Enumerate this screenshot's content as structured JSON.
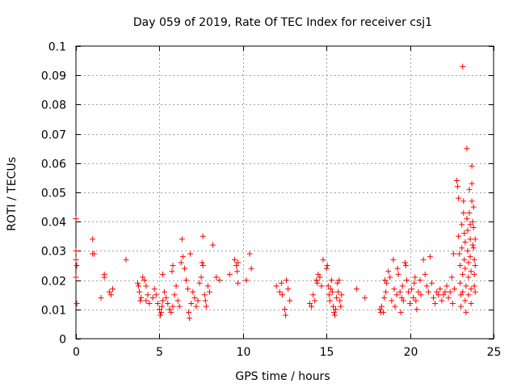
{
  "chart_data": {
    "type": "scatter",
    "title": "Day 059 of 2019, Rate Of TEC Index for receiver csj1",
    "xlabel": "GPS time / hours",
    "ylabel": "ROTI / TECUs",
    "xlim": [
      0,
      25
    ],
    "ylim": [
      0,
      0.1
    ],
    "x_ticks": [
      0,
      5,
      10,
      15,
      20,
      25
    ],
    "y_ticks": [
      0,
      0.01,
      0.02,
      0.03,
      0.04,
      0.05,
      0.06,
      0.07,
      0.08,
      0.09,
      0.1
    ],
    "x_tick_labels": [
      "0",
      "5",
      "10",
      "15",
      "20",
      "25"
    ],
    "y_tick_labels": [
      "0",
      "0.01",
      "0.02",
      "0.03",
      "0.04",
      "0.05",
      "0.06",
      "0.07",
      "0.08",
      "0.09",
      "0.1"
    ],
    "grid": true,
    "marker": "+",
    "marker_color": "#ff0000",
    "grid_color": "#a0a0a0",
    "series": [
      {
        "name": "ROTI",
        "points": [
          [
            0.0,
            0.041
          ],
          [
            0.0,
            0.03
          ],
          [
            0.0,
            0.027
          ],
          [
            0.05,
            0.025
          ],
          [
            0.0,
            0.021
          ],
          [
            0.05,
            0.012
          ],
          [
            1.0,
            0.034
          ],
          [
            1.0,
            0.029
          ],
          [
            1.1,
            0.029
          ],
          [
            1.5,
            0.014
          ],
          [
            1.7,
            0.022
          ],
          [
            1.7,
            0.021
          ],
          [
            2.0,
            0.016
          ],
          [
            2.1,
            0.015
          ],
          [
            2.2,
            0.017
          ],
          [
            3.0,
            0.027
          ],
          [
            3.7,
            0.019
          ],
          [
            3.8,
            0.016
          ],
          [
            3.9,
            0.014
          ],
          [
            3.85,
            0.013
          ],
          [
            3.75,
            0.018
          ],
          [
            4.0,
            0.021
          ],
          [
            4.1,
            0.02
          ],
          [
            4.2,
            0.018
          ],
          [
            4.3,
            0.015
          ],
          [
            4.4,
            0.012
          ],
          [
            4.2,
            0.013
          ],
          [
            4.6,
            0.014
          ],
          [
            4.7,
            0.017
          ],
          [
            4.8,
            0.015
          ],
          [
            4.9,
            0.012
          ],
          [
            5.0,
            0.01
          ],
          [
            5.05,
            0.008
          ],
          [
            5.1,
            0.009
          ],
          [
            5.15,
            0.011
          ],
          [
            5.2,
            0.013
          ],
          [
            5.3,
            0.016
          ],
          [
            5.2,
            0.022
          ],
          [
            5.4,
            0.014
          ],
          [
            5.5,
            0.012
          ],
          [
            5.6,
            0.01
          ],
          [
            5.7,
            0.009
          ],
          [
            5.8,
            0.011
          ],
          [
            5.75,
            0.023
          ],
          [
            5.8,
            0.025
          ],
          [
            5.9,
            0.015
          ],
          [
            6.0,
            0.018
          ],
          [
            6.1,
            0.013
          ],
          [
            6.2,
            0.011
          ],
          [
            6.3,
            0.026
          ],
          [
            6.4,
            0.028
          ],
          [
            6.35,
            0.034
          ],
          [
            6.5,
            0.024
          ],
          [
            6.6,
            0.02
          ],
          [
            6.7,
            0.017
          ],
          [
            6.75,
            0.009
          ],
          [
            6.8,
            0.007
          ],
          [
            6.9,
            0.012
          ],
          [
            6.85,
            0.029
          ],
          [
            7.0,
            0.016
          ],
          [
            7.1,
            0.014
          ],
          [
            7.2,
            0.011
          ],
          [
            7.3,
            0.013
          ],
          [
            7.4,
            0.019
          ],
          [
            7.5,
            0.021
          ],
          [
            7.55,
            0.026
          ],
          [
            7.6,
            0.025
          ],
          [
            7.7,
            0.015
          ],
          [
            7.75,
            0.013
          ],
          [
            7.8,
            0.011
          ],
          [
            7.6,
            0.035
          ],
          [
            7.9,
            0.018
          ],
          [
            8.0,
            0.016
          ],
          [
            8.2,
            0.032
          ],
          [
            8.4,
            0.021
          ],
          [
            8.6,
            0.02
          ],
          [
            9.2,
            0.022
          ],
          [
            9.5,
            0.027
          ],
          [
            9.6,
            0.025
          ],
          [
            9.65,
            0.023
          ],
          [
            9.7,
            0.019
          ],
          [
            9.7,
            0.026
          ],
          [
            10.2,
            0.02
          ],
          [
            10.4,
            0.029
          ],
          [
            10.5,
            0.024
          ],
          [
            12.0,
            0.018
          ],
          [
            12.2,
            0.016
          ],
          [
            12.3,
            0.019
          ],
          [
            12.35,
            0.015
          ],
          [
            12.5,
            0.01
          ],
          [
            12.55,
            0.008
          ],
          [
            12.6,
            0.02
          ],
          [
            12.7,
            0.017
          ],
          [
            12.8,
            0.013
          ],
          [
            14.0,
            0.012
          ],
          [
            14.1,
            0.011
          ],
          [
            14.2,
            0.015
          ],
          [
            14.3,
            0.013
          ],
          [
            14.4,
            0.02
          ],
          [
            14.45,
            0.019
          ],
          [
            14.5,
            0.022
          ],
          [
            14.6,
            0.021
          ],
          [
            14.7,
            0.018
          ],
          [
            14.8,
            0.027
          ],
          [
            15.0,
            0.024
          ],
          [
            15.05,
            0.025
          ],
          [
            15.1,
            0.018
          ],
          [
            15.15,
            0.015
          ],
          [
            15.2,
            0.013
          ],
          [
            15.25,
            0.017
          ],
          [
            15.3,
            0.02
          ],
          [
            15.35,
            0.016
          ],
          [
            15.4,
            0.011
          ],
          [
            15.45,
            0.009
          ],
          [
            15.5,
            0.008
          ],
          [
            15.55,
            0.01
          ],
          [
            15.6,
            0.014
          ],
          [
            15.65,
            0.019
          ],
          [
            15.7,
            0.016
          ],
          [
            15.75,
            0.02
          ],
          [
            15.8,
            0.013
          ],
          [
            15.85,
            0.011
          ],
          [
            15.9,
            0.015
          ],
          [
            16.8,
            0.017
          ],
          [
            17.3,
            0.014
          ],
          [
            18.2,
            0.01
          ],
          [
            18.25,
            0.009
          ],
          [
            18.3,
            0.011
          ],
          [
            18.4,
            0.009
          ],
          [
            18.45,
            0.014
          ],
          [
            18.5,
            0.02
          ],
          [
            18.55,
            0.016
          ],
          [
            18.6,
            0.019
          ],
          [
            18.7,
            0.023
          ],
          [
            18.8,
            0.021
          ],
          [
            18.9,
            0.013
          ],
          [
            19.0,
            0.027
          ],
          [
            19.05,
            0.017
          ],
          [
            19.1,
            0.011
          ],
          [
            19.2,
            0.015
          ],
          [
            19.25,
            0.024
          ],
          [
            19.3,
            0.022
          ],
          [
            19.4,
            0.016
          ],
          [
            19.45,
            0.009
          ],
          [
            19.5,
            0.014
          ],
          [
            19.55,
            0.018
          ],
          [
            19.6,
            0.013
          ],
          [
            19.7,
            0.026
          ],
          [
            19.75,
            0.025
          ],
          [
            19.8,
            0.02
          ],
          [
            19.9,
            0.016
          ],
          [
            20.0,
            0.012
          ],
          [
            20.1,
            0.017
          ],
          [
            20.2,
            0.014
          ],
          [
            20.25,
            0.019
          ],
          [
            20.3,
            0.021
          ],
          [
            20.35,
            0.013
          ],
          [
            20.4,
            0.01
          ],
          [
            20.5,
            0.016
          ],
          [
            20.6,
            0.02
          ],
          [
            20.65,
            0.015
          ],
          [
            20.8,
            0.027
          ],
          [
            20.9,
            0.022
          ],
          [
            21.0,
            0.018
          ],
          [
            21.1,
            0.016
          ],
          [
            21.2,
            0.028
          ],
          [
            21.3,
            0.019
          ],
          [
            21.4,
            0.014
          ],
          [
            21.5,
            0.012
          ],
          [
            21.6,
            0.016
          ],
          [
            21.7,
            0.015
          ],
          [
            21.8,
            0.017
          ],
          [
            21.9,
            0.013
          ],
          [
            22.0,
            0.015
          ],
          [
            22.1,
            0.016
          ],
          [
            22.2,
            0.018
          ],
          [
            22.3,
            0.014
          ],
          [
            22.4,
            0.016
          ],
          [
            22.5,
            0.021
          ],
          [
            22.55,
            0.012
          ],
          [
            22.6,
            0.029
          ],
          [
            22.65,
            0.017
          ],
          [
            22.8,
            0.054
          ],
          [
            22.85,
            0.052
          ],
          [
            22.9,
            0.048
          ],
          [
            22.9,
            0.035
          ],
          [
            22.95,
            0.029
          ],
          [
            23.0,
            0.025
          ],
          [
            23.0,
            0.019
          ],
          [
            23.05,
            0.015
          ],
          [
            23.05,
            0.011
          ],
          [
            23.1,
            0.039
          ],
          [
            23.1,
            0.031
          ],
          [
            23.15,
            0.022
          ],
          [
            23.15,
            0.016
          ],
          [
            23.2,
            0.047
          ],
          [
            23.2,
            0.043
          ],
          [
            23.25,
            0.036
          ],
          [
            23.25,
            0.027
          ],
          [
            23.3,
            0.033
          ],
          [
            23.3,
            0.024
          ],
          [
            23.3,
            0.013
          ],
          [
            23.35,
            0.018
          ],
          [
            23.35,
            0.009
          ],
          [
            23.4,
            0.065
          ],
          [
            23.4,
            0.041
          ],
          [
            23.45,
            0.037
          ],
          [
            23.45,
            0.03
          ],
          [
            23.5,
            0.026
          ],
          [
            23.5,
            0.021
          ],
          [
            23.5,
            0.015
          ],
          [
            23.55,
            0.051
          ],
          [
            23.55,
            0.043
          ],
          [
            23.6,
            0.039
          ],
          [
            23.6,
            0.034
          ],
          [
            23.6,
            0.028
          ],
          [
            23.65,
            0.023
          ],
          [
            23.65,
            0.017
          ],
          [
            23.65,
            0.012
          ],
          [
            23.7,
            0.059
          ],
          [
            23.7,
            0.053
          ],
          [
            23.7,
            0.047
          ],
          [
            23.75,
            0.04
          ],
          [
            23.75,
            0.032
          ],
          [
            23.8,
            0.045
          ],
          [
            23.8,
            0.038
          ],
          [
            23.8,
            0.031
          ],
          [
            23.85,
            0.027
          ],
          [
            23.85,
            0.022
          ],
          [
            23.85,
            0.018
          ],
          [
            23.9,
            0.034
          ],
          [
            23.9,
            0.025
          ],
          [
            23.9,
            0.016
          ],
          [
            23.15,
            0.093
          ]
        ]
      }
    ]
  }
}
